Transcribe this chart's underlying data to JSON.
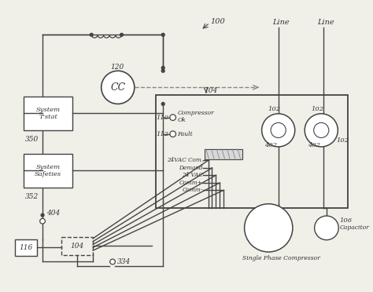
{
  "bg_color": "#f0efe8",
  "line_color": "#444444",
  "fig_width": 4.74,
  "fig_height": 3.72,
  "dpi": 100,
  "labels": {
    "line1": "Line",
    "line2": "Line",
    "n100": "100",
    "n120": "120",
    "n104_top": "104",
    "n110": "110",
    "n112": "112",
    "n102a": "102",
    "n102b": "102",
    "n102c": "102",
    "n402a": "402",
    "n402b": "402",
    "n350": "350",
    "n352": "352",
    "n404": "404",
    "n116": "116",
    "n104_bot": "104",
    "n334": "334",
    "n106": "106",
    "cc": "CC",
    "sys_tstat": "System\nT'stat",
    "sys_safe": "System\nSafeties",
    "comp_ok": "Compressor\nOk",
    "fault": "Fault",
    "vac_com": "24VAC Com.",
    "demand": "Demand",
    "vac24": "24 VAC",
    "comm_plus": "Comm+",
    "comm_minus": "Comm-",
    "single_phase": "Single Phase Compressor",
    "capacitor": "Capacitor"
  }
}
